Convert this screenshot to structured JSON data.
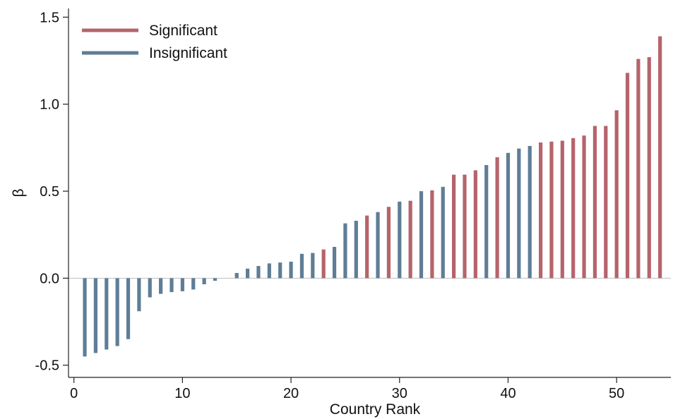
{
  "chart_data": {
    "type": "bar",
    "title": "",
    "xlabel": "Country Rank",
    "ylabel": "β",
    "xlim": [
      -0.5,
      55
    ],
    "ylim": [
      -0.57,
      1.55
    ],
    "x_ticks": [
      0,
      10,
      20,
      30,
      40,
      50
    ],
    "y_ticks": [
      -0.5,
      0.0,
      0.5,
      1.0,
      1.5
    ],
    "y_tick_labels": [
      "-0.5",
      "0.0",
      "0.5",
      "1.0",
      "1.5"
    ],
    "grid": false,
    "zero_line": true,
    "legend_position": "top-left",
    "legend": [
      {
        "name": "Significant",
        "key": "S",
        "color": "#b5646b"
      },
      {
        "name": "Insignificant",
        "key": "I",
        "color": "#5f7d96"
      }
    ],
    "x": [
      1,
      2,
      3,
      4,
      5,
      6,
      7,
      8,
      9,
      10,
      11,
      12,
      13,
      14,
      15,
      16,
      17,
      18,
      19,
      20,
      21,
      22,
      23,
      24,
      25,
      26,
      27,
      28,
      29,
      30,
      31,
      32,
      33,
      34,
      35,
      36,
      37,
      38,
      39,
      40,
      41,
      42,
      43,
      44,
      45,
      46,
      47,
      48,
      49,
      50,
      51,
      52,
      53,
      54
    ],
    "values": [
      -0.45,
      -0.43,
      -0.41,
      -0.39,
      -0.35,
      -0.19,
      -0.11,
      -0.09,
      -0.08,
      -0.075,
      -0.065,
      -0.035,
      -0.015,
      0.0,
      0.03,
      0.055,
      0.07,
      0.085,
      0.09,
      0.095,
      0.14,
      0.145,
      0.165,
      0.18,
      0.315,
      0.33,
      0.36,
      0.38,
      0.41,
      0.44,
      0.445,
      0.5,
      0.505,
      0.525,
      0.595,
      0.595,
      0.62,
      0.65,
      0.695,
      0.72,
      0.745,
      0.76,
      0.78,
      0.785,
      0.79,
      0.805,
      0.82,
      0.875,
      0.875,
      0.965,
      1.18,
      1.26,
      1.27,
      1.39
    ],
    "significance": [
      "I",
      "I",
      "I",
      "I",
      "I",
      "I",
      "I",
      "I",
      "I",
      "I",
      "I",
      "I",
      "I",
      "I",
      "I",
      "I",
      "I",
      "I",
      "I",
      "I",
      "I",
      "I",
      "S",
      "I",
      "I",
      "I",
      "S",
      "I",
      "S",
      "I",
      "S",
      "I",
      "S",
      "I",
      "S",
      "S",
      "S",
      "I",
      "S",
      "I",
      "I",
      "I",
      "S",
      "S",
      "S",
      "S",
      "S",
      "S",
      "S",
      "S",
      "S",
      "S",
      "S",
      "S"
    ]
  }
}
